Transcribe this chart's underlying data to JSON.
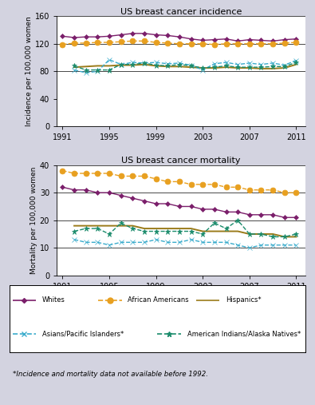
{
  "years": [
    1991,
    1992,
    1993,
    1994,
    1995,
    1996,
    1997,
    1998,
    1999,
    2000,
    2001,
    2002,
    2003,
    2004,
    2005,
    2006,
    2007,
    2008,
    2009,
    2010,
    2011
  ],
  "incidence": {
    "whites": [
      131,
      129,
      130,
      130,
      131,
      133,
      135,
      135,
      133,
      132,
      130,
      127,
      125,
      126,
      127,
      124,
      126,
      125,
      124,
      126,
      127
    ],
    "african_americans": [
      119,
      121,
      121,
      122,
      122,
      123,
      124,
      124,
      122,
      121,
      120,
      120,
      120,
      119,
      120,
      120,
      120,
      120,
      120,
      121,
      122
    ],
    "hispanics": [
      null,
      86,
      87,
      88,
      88,
      89,
      89,
      90,
      88,
      87,
      87,
      86,
      85,
      85,
      86,
      85,
      85,
      84,
      84,
      85,
      90
    ],
    "asians": [
      null,
      82,
      78,
      80,
      97,
      90,
      93,
      92,
      93,
      91,
      92,
      89,
      82,
      91,
      93,
      90,
      92,
      90,
      92,
      89,
      96
    ],
    "american_indians": [
      null,
      88,
      82,
      82,
      82,
      90,
      90,
      92,
      89,
      88,
      90,
      88,
      85,
      86,
      88,
      86,
      86,
      86,
      87,
      87,
      93
    ]
  },
  "mortality": {
    "whites": [
      32,
      31,
      31,
      30,
      30,
      29,
      28,
      27,
      26,
      26,
      25,
      25,
      24,
      24,
      23,
      23,
      22,
      22,
      22,
      21,
      21
    ],
    "african_americans": [
      38,
      37,
      37,
      37,
      37,
      36,
      36,
      36,
      35,
      34,
      34,
      33,
      33,
      33,
      32,
      32,
      31,
      31,
      31,
      30,
      30
    ],
    "hispanics": [
      null,
      18,
      18,
      18,
      18,
      18,
      18,
      17,
      17,
      17,
      17,
      17,
      16,
      16,
      16,
      16,
      15,
      15,
      15,
      14,
      14
    ],
    "asians": [
      null,
      13,
      12,
      12,
      11,
      12,
      12,
      12,
      13,
      12,
      12,
      13,
      12,
      12,
      12,
      11,
      10,
      11,
      11,
      11,
      11
    ],
    "american_indians": [
      null,
      16,
      17,
      17,
      15,
      19,
      17,
      16,
      16,
      16,
      16,
      16,
      15,
      19,
      17,
      20,
      15,
      15,
      14,
      14,
      15
    ]
  },
  "colors": {
    "whites": "#7B1F6B",
    "african_americans": "#E8A020",
    "hispanics": "#9B7B1A",
    "asians": "#3AACCC",
    "american_indians": "#1A8B6B"
  },
  "title_incidence": "US breast cancer incidence",
  "title_mortality": "US breast cancer mortality",
  "ylabel_incidence": "Incidence per 100,000 women",
  "ylabel_mortality": "Mortality per 100,000 women",
  "ylim_incidence": [
    0,
    160
  ],
  "ylim_mortality": [
    0,
    40
  ],
  "yticks_incidence": [
    0,
    40,
    80,
    120,
    160
  ],
  "yticks_mortality": [
    0,
    10,
    20,
    30,
    40
  ],
  "hlines_incidence": [
    80,
    120,
    160
  ],
  "hlines_mortality": [
    10,
    20,
    30,
    40
  ],
  "xticks": [
    1991,
    1995,
    1999,
    2003,
    2007,
    2011
  ],
  "xlim": [
    1990.5,
    2011.8
  ],
  "footnote": "*Incidence and mortality data not available before 1992.",
  "bg_color": "#D3D3E0"
}
